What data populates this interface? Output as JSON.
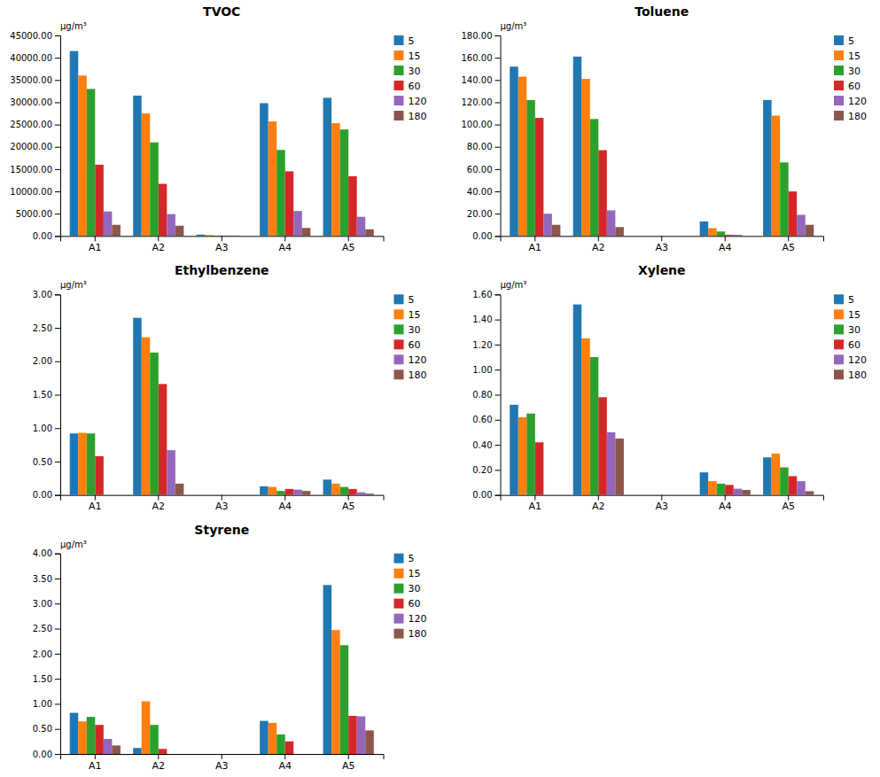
{
  "chart_data": [
    {
      "type": "bar",
      "title": "TVOC",
      "y_label": "μg/m³",
      "categories": [
        "A1",
        "A2",
        "A3",
        "A4",
        "A5"
      ],
      "series": [
        {
          "name": "5",
          "values": [
            41500,
            31500,
            300,
            29800,
            31000
          ]
        },
        {
          "name": "15",
          "values": [
            36000,
            27500,
            200,
            25700,
            25300
          ]
        },
        {
          "name": "30",
          "values": [
            33000,
            21000,
            100,
            19300,
            23900
          ]
        },
        {
          "name": "60",
          "values": [
            16000,
            11700,
            100,
            14500,
            13400
          ]
        },
        {
          "name": "120",
          "values": [
            5500,
            4900,
            100,
            5600,
            4300
          ]
        },
        {
          "name": "180",
          "values": [
            2500,
            2300,
            0,
            1800,
            1500
          ]
        }
      ],
      "ylim": [
        0,
        45000
      ],
      "yticks": [
        {
          "value": 0,
          "label": "0.00"
        },
        {
          "value": 5000,
          "label": "5000.00"
        },
        {
          "value": 10000,
          "label": "10000.00"
        },
        {
          "value": 15000,
          "label": "15000.00"
        },
        {
          "value": 20000,
          "label": "20000.00"
        },
        {
          "value": 25000,
          "label": "25000.00"
        },
        {
          "value": 30000,
          "label": "30000.00"
        },
        {
          "value": 35000,
          "label": "35000.00"
        },
        {
          "value": 40000,
          "label": "40000.00"
        },
        {
          "value": 45000,
          "label": "45000.00"
        }
      ],
      "grid": false,
      "legend": "right"
    },
    {
      "type": "bar",
      "title": "Toluene",
      "y_label": "μg/m³",
      "categories": [
        "A1",
        "A2",
        "A3",
        "A4",
        "A5"
      ],
      "series": [
        {
          "name": "5",
          "values": [
            152,
            161,
            0,
            13,
            122
          ]
        },
        {
          "name": "15",
          "values": [
            143,
            141,
            0,
            7,
            108
          ]
        },
        {
          "name": "30",
          "values": [
            122,
            105,
            0,
            4,
            66
          ]
        },
        {
          "name": "60",
          "values": [
            106,
            77,
            0,
            1,
            40
          ]
        },
        {
          "name": "120",
          "values": [
            20,
            23,
            0,
            1,
            19
          ]
        },
        {
          "name": "180",
          "values": [
            10,
            8,
            0,
            0,
            10
          ]
        }
      ],
      "ylim": [
        0,
        180
      ],
      "yticks": [
        {
          "value": 0,
          "label": "0.00"
        },
        {
          "value": 20,
          "label": "20.00"
        },
        {
          "value": 40,
          "label": "40.00"
        },
        {
          "value": 60,
          "label": "60.00"
        },
        {
          "value": 80,
          "label": "80.00"
        },
        {
          "value": 100,
          "label": "100.00"
        },
        {
          "value": 120,
          "label": "120.00"
        },
        {
          "value": 140,
          "label": "140.00"
        },
        {
          "value": 160,
          "label": "160.00"
        },
        {
          "value": 180,
          "label": "180.00"
        }
      ],
      "grid": false,
      "legend": "right"
    },
    {
      "type": "bar",
      "title": "Ethylbenzene",
      "y_label": "μg/m³",
      "categories": [
        "A1",
        "A2",
        "A3",
        "A4",
        "A5"
      ],
      "series": [
        {
          "name": "5",
          "values": [
            0.92,
            2.65,
            0,
            0.13,
            0.23
          ]
        },
        {
          "name": "15",
          "values": [
            0.93,
            2.36,
            0,
            0.12,
            0.17
          ]
        },
        {
          "name": "30",
          "values": [
            0.92,
            2.13,
            0,
            0.06,
            0.12
          ]
        },
        {
          "name": "60",
          "values": [
            0.58,
            1.66,
            0,
            0.09,
            0.09
          ]
        },
        {
          "name": "120",
          "values": [
            0,
            0.67,
            0,
            0.08,
            0.04
          ]
        },
        {
          "name": "180",
          "values": [
            0,
            0.17,
            0,
            0.06,
            0.02
          ]
        }
      ],
      "ylim": [
        0,
        3.0
      ],
      "yticks": [
        {
          "value": 0,
          "label": "0.00"
        },
        {
          "value": 0.5,
          "label": "0.50"
        },
        {
          "value": 1.0,
          "label": "1.00"
        },
        {
          "value": 1.5,
          "label": "1.50"
        },
        {
          "value": 2.0,
          "label": "2.00"
        },
        {
          "value": 2.5,
          "label": "2.50"
        },
        {
          "value": 3.0,
          "label": "3.00"
        }
      ],
      "grid": false,
      "legend": "right"
    },
    {
      "type": "bar",
      "title": "Xylene",
      "y_label": "μg/m³",
      "categories": [
        "A1",
        "A2",
        "A3",
        "A4",
        "A5"
      ],
      "series": [
        {
          "name": "5",
          "values": [
            0.72,
            1.52,
            0,
            0.18,
            0.3
          ]
        },
        {
          "name": "15",
          "values": [
            0.62,
            1.25,
            0,
            0.11,
            0.33
          ]
        },
        {
          "name": "30",
          "values": [
            0.65,
            1.1,
            0,
            0.09,
            0.22
          ]
        },
        {
          "name": "60",
          "values": [
            0.42,
            0.78,
            0,
            0.08,
            0.15
          ]
        },
        {
          "name": "120",
          "values": [
            0,
            0.5,
            0,
            0.05,
            0.11
          ]
        },
        {
          "name": "180",
          "values": [
            0,
            0.45,
            0,
            0.04,
            0.03
          ]
        }
      ],
      "ylim": [
        0,
        1.6
      ],
      "yticks": [
        {
          "value": 0,
          "label": "0.00"
        },
        {
          "value": 0.2,
          "label": "0.20"
        },
        {
          "value": 0.4,
          "label": "0.40"
        },
        {
          "value": 0.6,
          "label": "0.60"
        },
        {
          "value": 0.8,
          "label": "0.80"
        },
        {
          "value": 1.0,
          "label": "1.00"
        },
        {
          "value": 1.2,
          "label": "1.20"
        },
        {
          "value": 1.4,
          "label": "1.40"
        },
        {
          "value": 1.6,
          "label": "1.60"
        }
      ],
      "grid": false,
      "legend": "right"
    },
    {
      "type": "bar",
      "title": "Styrene",
      "y_label": "μg/m³",
      "categories": [
        "A1",
        "A2",
        "A3",
        "A4",
        "A5"
      ],
      "series": [
        {
          "name": "5",
          "values": [
            0.82,
            0.12,
            0,
            0.66,
            3.37
          ]
        },
        {
          "name": "15",
          "values": [
            0.65,
            1.05,
            0,
            0.62,
            2.47
          ]
        },
        {
          "name": "30",
          "values": [
            0.74,
            0.58,
            0,
            0.39,
            2.17
          ]
        },
        {
          "name": "60",
          "values": [
            0.58,
            0.1,
            0,
            0.25,
            0.76
          ]
        },
        {
          "name": "120",
          "values": [
            0.3,
            0,
            0,
            0,
            0.75
          ]
        },
        {
          "name": "180",
          "values": [
            0.17,
            0,
            0,
            0,
            0.47
          ]
        }
      ],
      "ylim": [
        0,
        4.0
      ],
      "yticks": [
        {
          "value": 0,
          "label": "0.00"
        },
        {
          "value": 0.5,
          "label": "0.50"
        },
        {
          "value": 1.0,
          "label": "1.00"
        },
        {
          "value": 1.5,
          "label": "1.50"
        },
        {
          "value": 2.0,
          "label": "2.00"
        },
        {
          "value": 2.5,
          "label": "2.50"
        },
        {
          "value": 3.0,
          "label": "3.00"
        },
        {
          "value": 3.5,
          "label": "3.50"
        },
        {
          "value": 4.0,
          "label": "4.00"
        }
      ],
      "grid": false,
      "legend": "right"
    }
  ]
}
